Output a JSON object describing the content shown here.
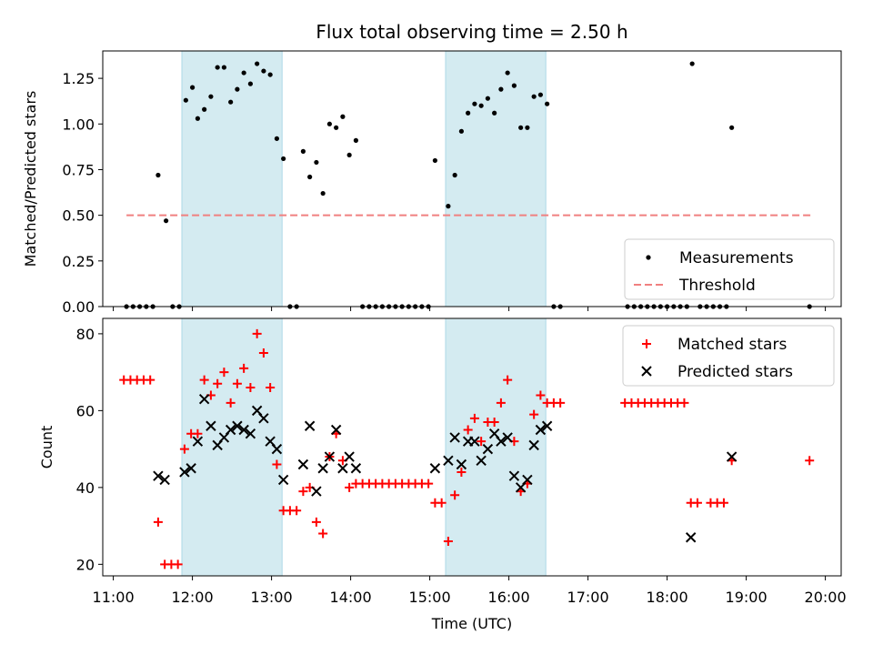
{
  "chart_data": [
    {
      "type": "scatter",
      "title": "Flux total observing time = 2.50 h",
      "xlabel": "",
      "ylabel": "Matched/Predicted stars",
      "ylim": [
        0,
        1.4
      ],
      "xlim": [
        "10:52",
        "20:12"
      ],
      "yticks": [
        "0.00",
        "0.25",
        "0.50",
        "0.75",
        "1.00",
        "1.25"
      ],
      "shaded_intervals": [
        [
          "11:52",
          "13:08"
        ],
        [
          "15:12",
          "16:28"
        ]
      ],
      "shade_color": "#d4ebf1",
      "legend_position": "lower right",
      "series": [
        {
          "name": "Measurements",
          "kind": "points",
          "color": "#000000",
          "points": [
            [
              "11:10",
              0
            ],
            [
              "11:15",
              0
            ],
            [
              "11:20",
              0
            ],
            [
              "11:25",
              0
            ],
            [
              "11:30",
              0
            ],
            [
              "11:34",
              0.72
            ],
            [
              "11:40",
              0.47
            ],
            [
              "11:45",
              0
            ],
            [
              "11:50",
              0
            ],
            [
              "11:55",
              1.13
            ],
            [
              "12:00",
              1.2
            ],
            [
              "12:04",
              1.03
            ],
            [
              "12:09",
              1.08
            ],
            [
              "12:14",
              1.15
            ],
            [
              "12:19",
              1.31
            ],
            [
              "12:24",
              1.31
            ],
            [
              "12:29",
              1.12
            ],
            [
              "12:34",
              1.19
            ],
            [
              "12:39",
              1.28
            ],
            [
              "12:44",
              1.22
            ],
            [
              "12:49",
              1.33
            ],
            [
              "12:54",
              1.29
            ],
            [
              "12:59",
              1.27
            ],
            [
              "13:04",
              0.92
            ],
            [
              "13:09",
              0.81
            ],
            [
              "13:14",
              0
            ],
            [
              "13:19",
              0
            ],
            [
              "13:24",
              0.85
            ],
            [
              "13:29",
              0.71
            ],
            [
              "13:34",
              0.79
            ],
            [
              "13:39",
              0.62
            ],
            [
              "13:44",
              1.0
            ],
            [
              "13:49",
              0.98
            ],
            [
              "13:54",
              1.04
            ],
            [
              "13:59",
              0.83
            ],
            [
              "14:04",
              0.91
            ],
            [
              "14:09",
              0
            ],
            [
              "14:14",
              0
            ],
            [
              "14:19",
              0
            ],
            [
              "14:24",
              0
            ],
            [
              "14:29",
              0
            ],
            [
              "14:34",
              0
            ],
            [
              "14:39",
              0
            ],
            [
              "14:44",
              0
            ],
            [
              "14:49",
              0
            ],
            [
              "14:54",
              0
            ],
            [
              "14:59",
              0
            ],
            [
              "15:04",
              0.8
            ],
            [
              "15:14",
              0.55
            ],
            [
              "15:19",
              0.72
            ],
            [
              "15:24",
              0.96
            ],
            [
              "15:29",
              1.06
            ],
            [
              "15:34",
              1.11
            ],
            [
              "15:39",
              1.1
            ],
            [
              "15:44",
              1.14
            ],
            [
              "15:49",
              1.06
            ],
            [
              "15:54",
              1.19
            ],
            [
              "15:59",
              1.28
            ],
            [
              "16:04",
              1.21
            ],
            [
              "16:09",
              0.98
            ],
            [
              "16:14",
              0.98
            ],
            [
              "16:19",
              1.15
            ],
            [
              "16:24",
              1.16
            ],
            [
              "16:29",
              1.11
            ],
            [
              "16:34",
              0
            ],
            [
              "16:39",
              0
            ],
            [
              "17:30",
              0
            ],
            [
              "17:35",
              0
            ],
            [
              "17:40",
              0
            ],
            [
              "17:45",
              0
            ],
            [
              "17:50",
              0
            ],
            [
              "17:55",
              0
            ],
            [
              "18:00",
              0
            ],
            [
              "18:05",
              0
            ],
            [
              "18:10",
              0
            ],
            [
              "18:15",
              0
            ],
            [
              "18:19",
              1.33
            ],
            [
              "18:25",
              0
            ],
            [
              "18:30",
              0
            ],
            [
              "18:35",
              0
            ],
            [
              "18:40",
              0
            ],
            [
              "18:45",
              0
            ],
            [
              "18:49",
              0.98
            ],
            [
              "19:48",
              0
            ]
          ]
        },
        {
          "name": "Threshold",
          "kind": "dashed-line",
          "color": "#f08080",
          "points": [
            [
              "11:10",
              0.5
            ],
            [
              "19:50",
              0.5
            ]
          ]
        }
      ]
    },
    {
      "type": "scatter",
      "title": "",
      "xlabel": "Time (UTC)",
      "ylabel": "Count",
      "ylim": [
        17,
        84
      ],
      "xlim": [
        "10:52",
        "20:12"
      ],
      "yticks": [
        "20",
        "40",
        "60",
        "80"
      ],
      "xticks": [
        "11:00",
        "12:00",
        "13:00",
        "14:00",
        "15:00",
        "16:00",
        "17:00",
        "18:00",
        "19:00",
        "20:00"
      ],
      "shaded_intervals": [
        [
          "11:52",
          "13:08"
        ],
        [
          "15:12",
          "16:28"
        ]
      ],
      "shade_color": "#d4ebf1",
      "legend_position": "upper right",
      "series": [
        {
          "name": "Matched stars",
          "kind": "plus",
          "color": "#ff0000",
          "points": [
            [
              "11:08",
              68
            ],
            [
              "11:13",
              68
            ],
            [
              "11:18",
              68
            ],
            [
              "11:23",
              68
            ],
            [
              "11:28",
              68
            ],
            [
              "11:34",
              31
            ],
            [
              "11:39",
              20
            ],
            [
              "11:44",
              20
            ],
            [
              "11:49",
              20
            ],
            [
              "11:54",
              50
            ],
            [
              "11:59",
              54
            ],
            [
              "12:04",
              54
            ],
            [
              "12:09",
              68
            ],
            [
              "12:14",
              64
            ],
            [
              "12:19",
              67
            ],
            [
              "12:24",
              70
            ],
            [
              "12:29",
              62
            ],
            [
              "12:34",
              67
            ],
            [
              "12:39",
              71
            ],
            [
              "12:44",
              66
            ],
            [
              "12:49",
              80
            ],
            [
              "12:54",
              75
            ],
            [
              "12:59",
              66
            ],
            [
              "13:04",
              46
            ],
            [
              "13:09",
              34
            ],
            [
              "13:14",
              34
            ],
            [
              "13:19",
              34
            ],
            [
              "13:24",
              39
            ],
            [
              "13:29",
              40
            ],
            [
              "13:34",
              31
            ],
            [
              "13:39",
              28
            ],
            [
              "13:44",
              48
            ],
            [
              "13:49",
              54
            ],
            [
              "13:54",
              47
            ],
            [
              "13:59",
              40
            ],
            [
              "14:04",
              41
            ],
            [
              "14:09",
              41
            ],
            [
              "14:14",
              41
            ],
            [
              "14:19",
              41
            ],
            [
              "14:24",
              41
            ],
            [
              "14:29",
              41
            ],
            [
              "14:34",
              41
            ],
            [
              "14:39",
              41
            ],
            [
              "14:44",
              41
            ],
            [
              "14:49",
              41
            ],
            [
              "14:54",
              41
            ],
            [
              "14:59",
              41
            ],
            [
              "15:04",
              36
            ],
            [
              "15:09",
              36
            ],
            [
              "15:14",
              26
            ],
            [
              "15:19",
              38
            ],
            [
              "15:24",
              44
            ],
            [
              "15:29",
              55
            ],
            [
              "15:34",
              58
            ],
            [
              "15:39",
              52
            ],
            [
              "15:44",
              57
            ],
            [
              "15:49",
              57
            ],
            [
              "15:54",
              62
            ],
            [
              "15:59",
              68
            ],
            [
              "16:04",
              52
            ],
            [
              "16:09",
              39
            ],
            [
              "16:14",
              41
            ],
            [
              "16:19",
              59
            ],
            [
              "16:24",
              64
            ],
            [
              "16:29",
              62
            ],
            [
              "16:34",
              62
            ],
            [
              "16:39",
              62
            ],
            [
              "17:28",
              62
            ],
            [
              "17:33",
              62
            ],
            [
              "17:38",
              62
            ],
            [
              "17:43",
              62
            ],
            [
              "17:48",
              62
            ],
            [
              "17:53",
              62
            ],
            [
              "17:58",
              62
            ],
            [
              "18:03",
              62
            ],
            [
              "18:08",
              62
            ],
            [
              "18:13",
              62
            ],
            [
              "18:18",
              36
            ],
            [
              "18:23",
              36
            ],
            [
              "18:33",
              36
            ],
            [
              "18:38",
              36
            ],
            [
              "18:43",
              36
            ],
            [
              "18:49",
              47
            ],
            [
              "19:48",
              47
            ]
          ]
        },
        {
          "name": "Predicted stars",
          "kind": "cross",
          "color": "#000000",
          "points": [
            [
              "11:34",
              43
            ],
            [
              "11:39",
              42
            ],
            [
              "11:54",
              44
            ],
            [
              "11:59",
              45
            ],
            [
              "12:04",
              52
            ],
            [
              "12:09",
              63
            ],
            [
              "12:14",
              56
            ],
            [
              "12:19",
              51
            ],
            [
              "12:24",
              53
            ],
            [
              "12:29",
              55
            ],
            [
              "12:34",
              56
            ],
            [
              "12:39",
              55
            ],
            [
              "12:44",
              54
            ],
            [
              "12:49",
              60
            ],
            [
              "12:54",
              58
            ],
            [
              "12:59",
              52
            ],
            [
              "13:04",
              50
            ],
            [
              "13:09",
              42
            ],
            [
              "13:24",
              46
            ],
            [
              "13:29",
              56
            ],
            [
              "13:34",
              39
            ],
            [
              "13:39",
              45
            ],
            [
              "13:44",
              48
            ],
            [
              "13:49",
              55
            ],
            [
              "13:54",
              45
            ],
            [
              "13:59",
              48
            ],
            [
              "14:04",
              45
            ],
            [
              "15:04",
              45
            ],
            [
              "15:14",
              47
            ],
            [
              "15:19",
              53
            ],
            [
              "15:24",
              46
            ],
            [
              "15:29",
              52
            ],
            [
              "15:34",
              52
            ],
            [
              "15:39",
              47
            ],
            [
              "15:44",
              50
            ],
            [
              "15:49",
              54
            ],
            [
              "15:54",
              52
            ],
            [
              "15:59",
              53
            ],
            [
              "16:04",
              43
            ],
            [
              "16:09",
              40
            ],
            [
              "16:14",
              42
            ],
            [
              "16:19",
              51
            ],
            [
              "16:24",
              55
            ],
            [
              "16:29",
              56
            ],
            [
              "18:18",
              27
            ],
            [
              "18:49",
              48
            ]
          ]
        }
      ]
    }
  ]
}
